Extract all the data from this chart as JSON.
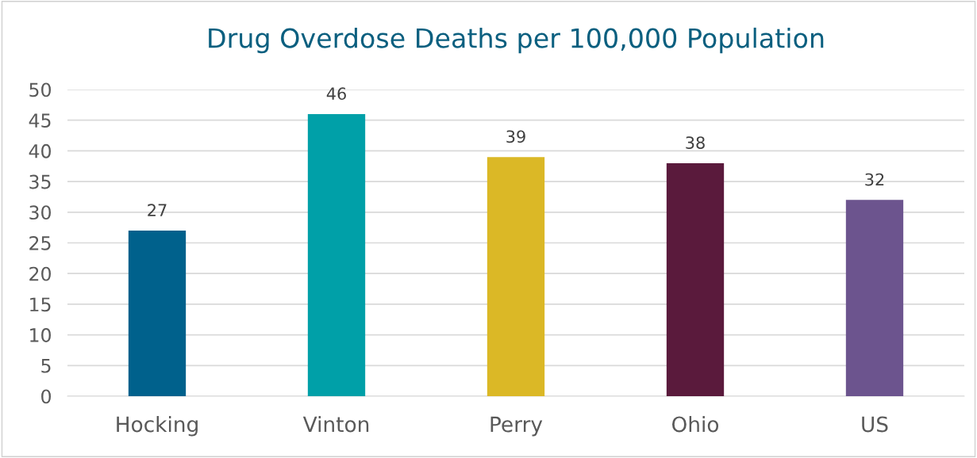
{
  "chart_data": {
    "type": "bar",
    "title": "Drug Overdose Deaths per 100,000 Population",
    "categories": [
      "Hocking",
      "Vinton",
      "Perry",
      "Ohio",
      "US"
    ],
    "values": [
      27,
      46,
      39,
      38,
      32
    ],
    "colors": [
      "#00618c",
      "#00a0a8",
      "#dbb826",
      "#5a1a3c",
      "#6c548e"
    ],
    "ylim": [
      0,
      50
    ],
    "yticks": [
      0,
      5,
      10,
      15,
      20,
      25,
      30,
      35,
      40,
      45,
      50
    ],
    "grid": "y",
    "data_labels": true,
    "legend": false
  }
}
